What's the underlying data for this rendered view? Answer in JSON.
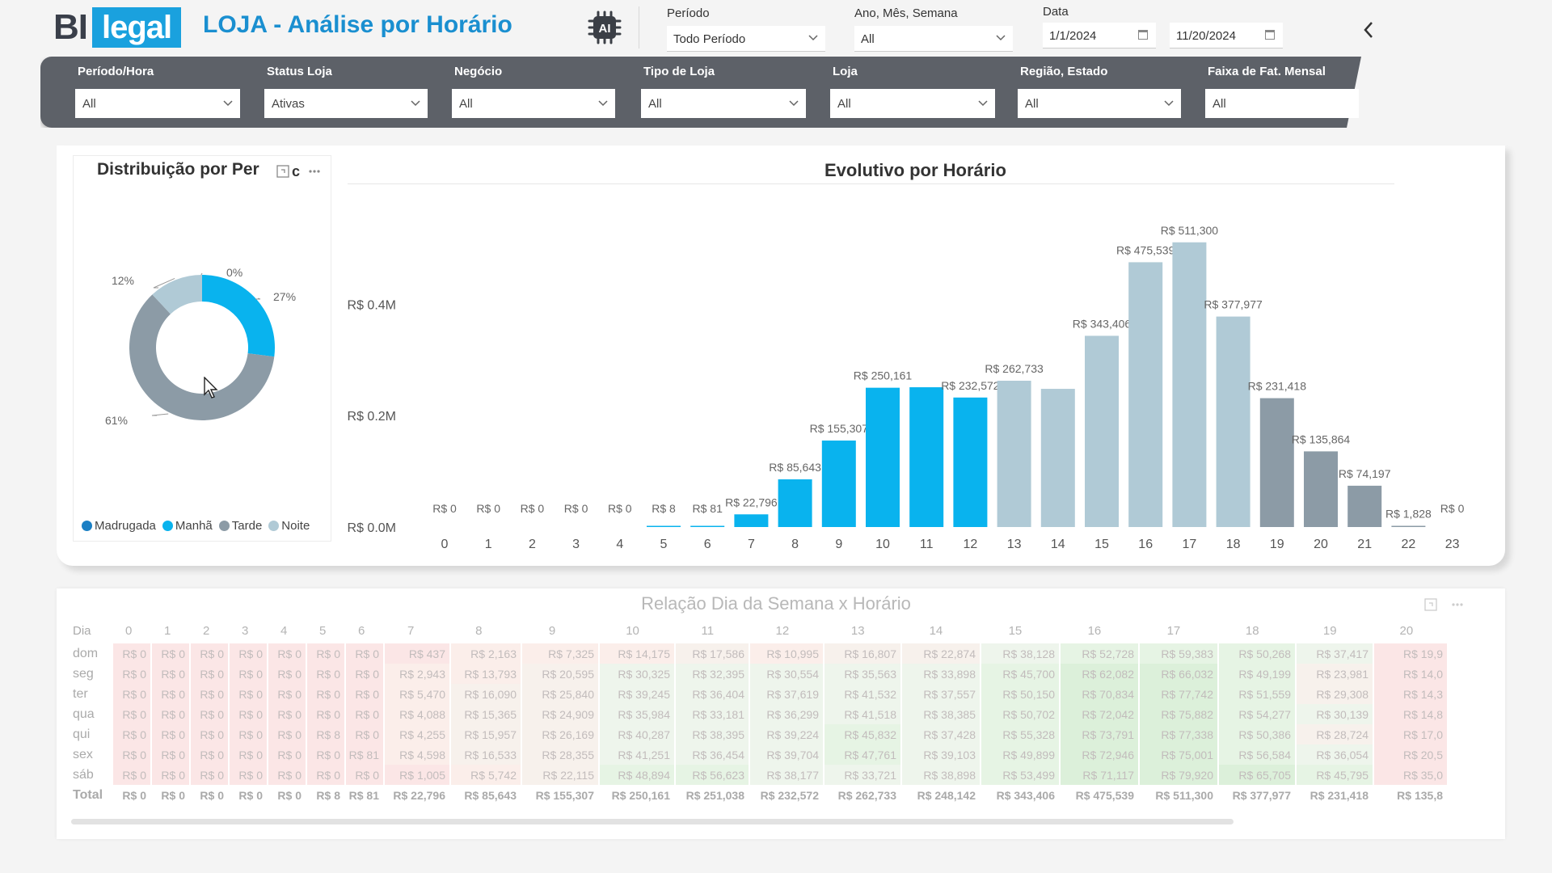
{
  "header": {
    "logo_bi": "BI",
    "logo_legal": "legal",
    "title": "LOJA - Análise por Horário",
    "ai_icon": "ai-chip-icon",
    "ai_label": "AI"
  },
  "top_filters": {
    "periodo": {
      "label": "Período",
      "value": "Todo Período"
    },
    "ano_mes_semana": {
      "label": "Ano, Mês, Semana",
      "value": "All"
    },
    "data": {
      "label": "Data",
      "start": "1/1/2024",
      "end": "11/20/2024"
    }
  },
  "filter_bar": [
    {
      "label": "Período/Hora",
      "value": "All"
    },
    {
      "label": "Status Loja",
      "value": "Ativas"
    },
    {
      "label": "Negócio",
      "value": "All"
    },
    {
      "label": "Tipo de Loja",
      "value": "All"
    },
    {
      "label": "Loja",
      "value": "All"
    },
    {
      "label": "Região, Estado",
      "value": "All"
    },
    {
      "label": "Faixa de Fat. Mensal",
      "value": "All"
    }
  ],
  "donut": {
    "title": "Distribuição por Per",
    "title_tail": "c",
    "slices": [
      {
        "name": "Madrugada",
        "percent": 0,
        "label": "0%",
        "color": "#1a7fc4"
      },
      {
        "name": "Manhã",
        "percent": 27,
        "label": "27%",
        "color": "#09b3ee"
      },
      {
        "name": "Tarde",
        "percent": 61,
        "label": "61%",
        "color": "#8c9ba6"
      },
      {
        "name": "Noite",
        "percent": 12,
        "label": "12%",
        "color": "#b0cad6"
      }
    ]
  },
  "chart_data": {
    "type": "bar",
    "title": "Evolutivo por Horário",
    "categories": [
      "0",
      "1",
      "2",
      "3",
      "4",
      "5",
      "6",
      "7",
      "8",
      "9",
      "10",
      "11",
      "12",
      "13",
      "14",
      "15",
      "16",
      "17",
      "18",
      "19",
      "20",
      "21",
      "22",
      "23"
    ],
    "values": [
      0,
      0,
      0,
      0,
      0,
      8,
      81,
      22796,
      85643,
      155307,
      250161,
      251038,
      232572,
      262733,
      248142,
      343406,
      475539,
      511300,
      377977,
      231418,
      135864,
      74197,
      1828,
      0
    ],
    "data_labels": [
      "R$ 0",
      "R$ 0",
      "R$ 0",
      "R$ 0",
      "R$ 0",
      "R$ 8",
      "R$ 81",
      "R$ 22,796",
      "R$ 85,643",
      "R$ 155,307",
      "R$ 250,161",
      "",
      "R$ 232,572",
      "R$ 262,733",
      "",
      "R$ 343,406",
      "R$ 475,539",
      "R$ 511,300",
      "R$ 377,977",
      "R$ 231,418",
      "R$ 135,864",
      "R$ 74,197",
      "R$ 1,828",
      "R$ 0"
    ],
    "colors": [
      "#09b3ee",
      "#09b3ee",
      "#09b3ee",
      "#09b3ee",
      "#09b3ee",
      "#09b3ee",
      "#09b3ee",
      "#09b3ee",
      "#09b3ee",
      "#09b3ee",
      "#09b3ee",
      "#09b3ee",
      "#09b3ee",
      "#b0cad6",
      "#b0cad6",
      "#b0cad6",
      "#b0cad6",
      "#b0cad6",
      "#b0cad6",
      "#8c9ba6",
      "#8c9ba6",
      "#8c9ba6",
      "#8c9ba6",
      "#8c9ba6"
    ],
    "y_ticks": [
      {
        "value": 0,
        "label": "R$ 0.0M"
      },
      {
        "value": 200000,
        "label": "R$ 0.2M"
      },
      {
        "value": 400000,
        "label": "R$ 0.4M"
      }
    ],
    "ylim": [
      0,
      540000
    ],
    "xlabel": "",
    "ylabel": ""
  },
  "matrix": {
    "title": "Relação Dia da Semana x Horário",
    "row_header": "Dia",
    "columns": [
      "0",
      "1",
      "2",
      "3",
      "4",
      "5",
      "6",
      "7",
      "8",
      "9",
      "10",
      "11",
      "12",
      "13",
      "14",
      "15",
      "16",
      "17",
      "18",
      "19",
      "20"
    ],
    "rows": [
      {
        "day": "dom",
        "values": [
          "R$ 0",
          "R$ 0",
          "R$ 0",
          "R$ 0",
          "R$ 0",
          "R$ 0",
          "R$ 0",
          "R$ 437",
          "R$ 2,163",
          "R$ 7,325",
          "R$ 14,175",
          "R$ 17,586",
          "R$ 10,995",
          "R$ 16,807",
          "R$ 22,874",
          "R$ 38,128",
          "R$ 52,728",
          "R$ 59,383",
          "R$ 50,268",
          "R$ 37,417",
          "R$ 19,9"
        ]
      },
      {
        "day": "seg",
        "values": [
          "R$ 0",
          "R$ 0",
          "R$ 0",
          "R$ 0",
          "R$ 0",
          "R$ 0",
          "R$ 0",
          "R$ 2,943",
          "R$ 13,793",
          "R$ 20,595",
          "R$ 30,325",
          "R$ 32,395",
          "R$ 30,554",
          "R$ 35,563",
          "R$ 33,898",
          "R$ 45,700",
          "R$ 62,082",
          "R$ 66,032",
          "R$ 49,199",
          "R$ 23,981",
          "R$ 14,0"
        ]
      },
      {
        "day": "ter",
        "values": [
          "R$ 0",
          "R$ 0",
          "R$ 0",
          "R$ 0",
          "R$ 0",
          "R$ 0",
          "R$ 0",
          "R$ 5,470",
          "R$ 16,090",
          "R$ 25,840",
          "R$ 39,245",
          "R$ 36,404",
          "R$ 37,619",
          "R$ 41,532",
          "R$ 37,557",
          "R$ 50,150",
          "R$ 70,834",
          "R$ 77,742",
          "R$ 51,559",
          "R$ 29,308",
          "R$ 14,3"
        ]
      },
      {
        "day": "qua",
        "values": [
          "R$ 0",
          "R$ 0",
          "R$ 0",
          "R$ 0",
          "R$ 0",
          "R$ 0",
          "R$ 0",
          "R$ 4,088",
          "R$ 15,365",
          "R$ 24,909",
          "R$ 35,984",
          "R$ 33,181",
          "R$ 36,299",
          "R$ 41,518",
          "R$ 38,385",
          "R$ 50,702",
          "R$ 72,042",
          "R$ 75,882",
          "R$ 54,277",
          "R$ 30,139",
          "R$ 14,8"
        ]
      },
      {
        "day": "qui",
        "values": [
          "R$ 0",
          "R$ 0",
          "R$ 0",
          "R$ 0",
          "R$ 0",
          "R$ 8",
          "R$ 0",
          "R$ 4,255",
          "R$ 15,957",
          "R$ 26,169",
          "R$ 40,287",
          "R$ 38,395",
          "R$ 39,224",
          "R$ 45,832",
          "R$ 37,428",
          "R$ 55,328",
          "R$ 73,791",
          "R$ 77,338",
          "R$ 50,386",
          "R$ 28,724",
          "R$ 17,0"
        ]
      },
      {
        "day": "sex",
        "values": [
          "R$ 0",
          "R$ 0",
          "R$ 0",
          "R$ 0",
          "R$ 0",
          "R$ 0",
          "R$ 81",
          "R$ 4,598",
          "R$ 16,533",
          "R$ 28,355",
          "R$ 41,251",
          "R$ 36,454",
          "R$ 39,704",
          "R$ 47,761",
          "R$ 39,103",
          "R$ 49,899",
          "R$ 72,946",
          "R$ 75,001",
          "R$ 56,584",
          "R$ 36,054",
          "R$ 20,5"
        ]
      },
      {
        "day": "sáb",
        "values": [
          "R$ 0",
          "R$ 0",
          "R$ 0",
          "R$ 0",
          "R$ 0",
          "R$ 0",
          "R$ 0",
          "R$ 1,005",
          "R$ 5,742",
          "R$ 22,115",
          "R$ 48,894",
          "R$ 56,623",
          "R$ 38,177",
          "R$ 33,721",
          "R$ 38,898",
          "R$ 53,499",
          "R$ 71,117",
          "R$ 79,920",
          "R$ 65,705",
          "R$ 45,795",
          "R$ 35,0"
        ]
      }
    ],
    "total": {
      "day": "Total",
      "values": [
        "R$ 0",
        "R$ 0",
        "R$ 0",
        "R$ 0",
        "R$ 0",
        "R$ 8",
        "R$ 81",
        "R$ 22,796",
        "R$ 85,643",
        "R$ 155,307",
        "R$ 250,161",
        "R$ 251,038",
        "R$ 232,572",
        "R$ 262,733",
        "R$ 248,142",
        "R$ 343,406",
        "R$ 475,539",
        "R$ 511,300",
        "R$ 377,977",
        "R$ 231,418",
        "R$ 135,8"
      ]
    }
  }
}
